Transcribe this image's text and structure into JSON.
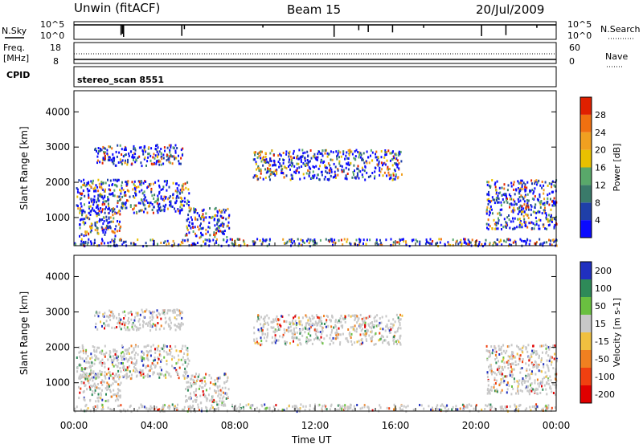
{
  "header": {
    "title": "Unwin (fitACF)",
    "beam": "Beam 15",
    "date": "20/Jul/2009"
  },
  "strip_panels": {
    "nsky": {
      "label": "N.Sky",
      "right_label": "N.Search",
      "ticks_left": [
        "10^5",
        "10^0"
      ],
      "ticks_right": [
        "10^5",
        "10^0"
      ]
    },
    "freq": {
      "label_line1": "Freq.",
      "label_line2": "[MHz]",
      "right_label": "Nave",
      "ticks_left": [
        "18",
        "8"
      ],
      "ticks_right": [
        "60",
        "0"
      ]
    },
    "cpid": {
      "label": "CPID",
      "text": "stereo_scan 8551"
    }
  },
  "colors": {
    "power_scale": [
      "#0a0aff",
      "#1f3fa8",
      "#3a7a6a",
      "#59a86a",
      "#e8c000",
      "#f0a020",
      "#f07010",
      "#e02000"
    ],
    "velocity_scale": [
      "#2030c0",
      "#2e8a58",
      "#6ac040",
      "#c8c8c8",
      "#f0c040",
      "#f08020",
      "#f04010",
      "#e00000"
    ]
  },
  "chart_data": [
    {
      "type": "heatmap",
      "ylabel": "Slant Range [km]",
      "xlabel": "Time UT",
      "x_ticks": [
        "00:00",
        "04:00",
        "08:00",
        "12:00",
        "16:00",
        "20:00",
        "00:00"
      ],
      "y_ticks": [
        1000,
        2000,
        3000,
        4000
      ],
      "ylim": [
        200,
        4600
      ],
      "xlim_hours": [
        0,
        24
      ],
      "colorbar": {
        "label": "Power [dB]",
        "ticks": [
          "4",
          "8",
          "12",
          "16",
          "20",
          "24",
          "28"
        ]
      },
      "echo_regions": [
        {
          "t0": 0.1,
          "t1": 5.7,
          "r0": 1150,
          "r1": 2100
        },
        {
          "t0": 0.2,
          "t1": 2.3,
          "r0": 500,
          "r1": 1300
        },
        {
          "t0": 1.0,
          "t1": 5.4,
          "r0": 2500,
          "r1": 3100
        },
        {
          "t0": 5.5,
          "t1": 7.7,
          "r0": 450,
          "r1": 1300
        },
        {
          "t0": 8.9,
          "t1": 16.3,
          "r0": 2100,
          "r1": 2950
        },
        {
          "t0": 20.5,
          "t1": 24.0,
          "r0": 700,
          "r1": 2100
        },
        {
          "t0": 0.0,
          "t1": 24.0,
          "r0": 220,
          "r1": 420
        }
      ]
    },
    {
      "type": "heatmap",
      "ylabel": "Slant Range [km]",
      "xlabel": "Time UT",
      "x_ticks": [
        "00:00",
        "04:00",
        "08:00",
        "12:00",
        "16:00",
        "20:00",
        "00:00"
      ],
      "y_ticks": [
        1000,
        2000,
        3000,
        4000
      ],
      "ylim": [
        200,
        4600
      ],
      "xlim_hours": [
        0,
        24
      ],
      "colorbar": {
        "label": "Velocity [m s-1]",
        "ticks": [
          "200",
          "100",
          "50",
          "15",
          "-15",
          "-50",
          "-100",
          "-200"
        ]
      },
      "echo_regions": [
        {
          "t0": 0.1,
          "t1": 5.7,
          "r0": 1150,
          "r1": 2100
        },
        {
          "t0": 0.2,
          "t1": 2.3,
          "r0": 500,
          "r1": 1300
        },
        {
          "t0": 1.0,
          "t1": 5.4,
          "r0": 2500,
          "r1": 3100
        },
        {
          "t0": 5.5,
          "t1": 7.7,
          "r0": 450,
          "r1": 1300
        },
        {
          "t0": 8.9,
          "t1": 16.3,
          "r0": 2100,
          "r1": 2950
        },
        {
          "t0": 20.5,
          "t1": 24.0,
          "r0": 700,
          "r1": 2100
        },
        {
          "t0": 0.0,
          "t1": 24.0,
          "r0": 220,
          "r1": 420
        }
      ]
    }
  ]
}
